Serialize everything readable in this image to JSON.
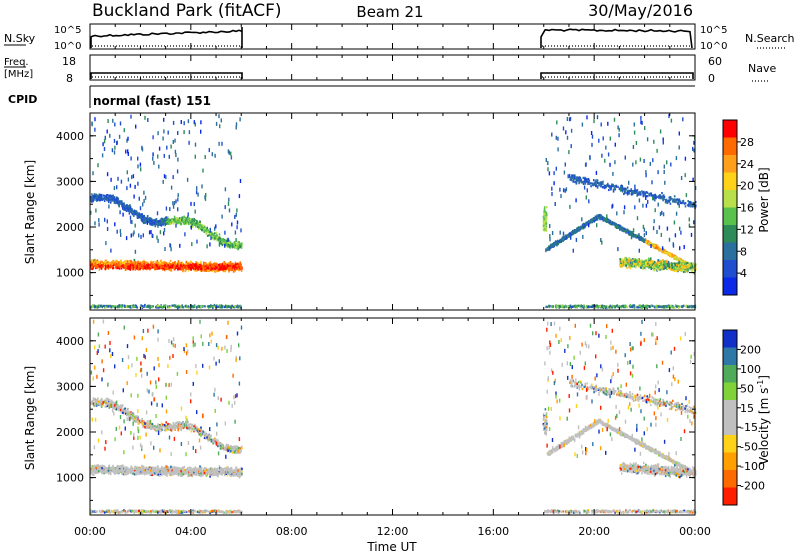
{
  "header": {
    "station": "Buckland Park (fitACF)",
    "beam": "Beam 21",
    "date": "30/May/2016"
  },
  "panels": {
    "nsky": {
      "label": "N.Sky",
      "right_label": "N.Search",
      "ticks": [
        "10^5",
        "10^0"
      ]
    },
    "freq": {
      "label_line1": "Freq.",
      "label_line2": "[MHz]",
      "left_ticks": [
        "18",
        "8"
      ],
      "right_label": "Nave",
      "right_ticks": [
        "60",
        "0"
      ]
    },
    "cpid": {
      "label": "CPID",
      "value": "normal (fast) 151"
    }
  },
  "chart_data": [
    {
      "type": "heatmap",
      "name": "power",
      "ylabel": "Slant Range [km]",
      "yticks": [
        "4000",
        "3000",
        "2000",
        "1000"
      ],
      "ylim": [
        180,
        4500
      ],
      "xlim": [
        0,
        24
      ],
      "data_hours": [
        [
          0,
          6
        ],
        [
          18,
          24
        ]
      ],
      "colorbar": {
        "label": "Power [dB]",
        "ticks": [
          "28",
          "24",
          "20",
          "16",
          "12",
          "8",
          "4"
        ],
        "colors": [
          "#ff0000",
          "#ff6a00",
          "#ff9f1c",
          "#ffd21a",
          "#b8e04a",
          "#59c24c",
          "#2e8b57",
          "#2a6f9e",
          "#1f4fcf",
          "#0a2ae8"
        ]
      }
    },
    {
      "type": "heatmap",
      "name": "velocity",
      "ylabel": "Slant Range [km]",
      "yticks": [
        "4000",
        "3000",
        "2000",
        "1000"
      ],
      "ylim": [
        180,
        4500
      ],
      "xlim": [
        0,
        24
      ],
      "colorbar": {
        "label": "Velocity [m s^-1]",
        "ticks": [
          "200",
          "100",
          "50",
          "15",
          "-15",
          "-50",
          "-100",
          "-200"
        ],
        "colors": [
          "#1030c8",
          "#2e78a8",
          "#4faa5a",
          "#7fd23a",
          "#c0c0c0",
          "#c0c0c0",
          "#ffd21a",
          "#ffa000",
          "#ff6a00",
          "#ff1e00"
        ]
      }
    }
  ],
  "xaxis": {
    "ticks": [
      "00:00",
      "04:00",
      "08:00",
      "12:00",
      "16:00",
      "20:00",
      "00:00"
    ],
    "label": "Time UT"
  }
}
